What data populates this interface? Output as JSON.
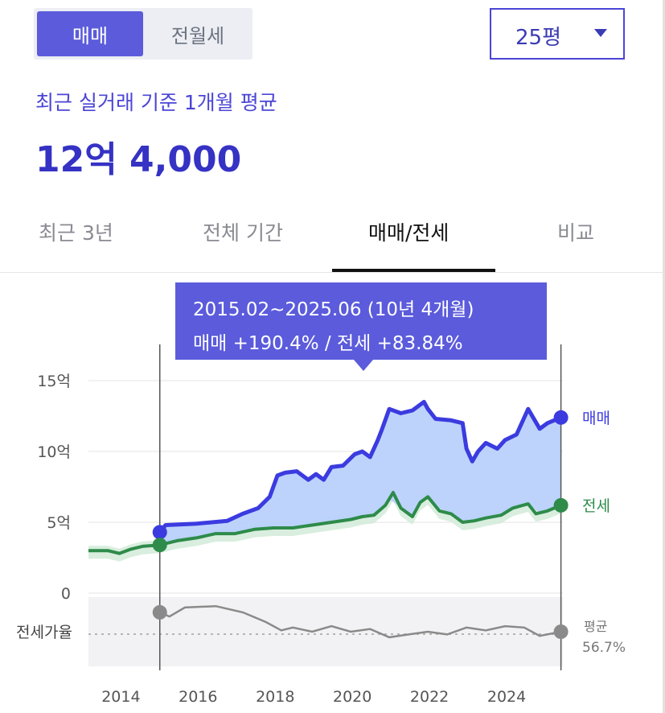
{
  "toggle": {
    "active": "매매",
    "inactive": "전월세"
  },
  "size_select": {
    "value": "25평"
  },
  "summary": {
    "subtitle": "최근 실거래 기준 1개월 평균",
    "price": "12억 4,000"
  },
  "tabs": [
    {
      "label": "최근 3년"
    },
    {
      "label": "전체 기간"
    },
    {
      "label": "매매/전세"
    },
    {
      "label": "비교"
    }
  ],
  "tooltip": {
    "line1": "2015.02~2025.06 (10년 4개월)",
    "line2": "매매 +190.4%  /  전세 +83.84%"
  },
  "colors": {
    "accent": "#5b5bdc",
    "sale": "#3b3be0",
    "sale_fill": "#b9d1fb",
    "jeonse": "#2e8b4a"
  },
  "chart_data": {
    "type": "line",
    "x_ticks": [
      "2014",
      "2016",
      "2018",
      "2020",
      "2022",
      "2024"
    ],
    "y_ticks": [
      "0",
      "5억",
      "10억",
      "15억"
    ],
    "ylim": [
      0,
      16
    ],
    "xlim": [
      2013.2,
      2025.5
    ],
    "highlight_range": [
      2015.05,
      2025.45
    ],
    "series": [
      {
        "name": "매매",
        "unit": "억",
        "points": [
          [
            2015.05,
            4.3
          ],
          [
            2015.2,
            4.8
          ],
          [
            2016,
            4.9
          ],
          [
            2016.8,
            5.1
          ],
          [
            2017.2,
            5.6
          ],
          [
            2017.6,
            6.0
          ],
          [
            2017.9,
            6.8
          ],
          [
            2018.1,
            8.3
          ],
          [
            2018.3,
            8.5
          ],
          [
            2018.6,
            8.6
          ],
          [
            2018.9,
            8.0
          ],
          [
            2019.1,
            8.4
          ],
          [
            2019.3,
            8.0
          ],
          [
            2019.5,
            8.9
          ],
          [
            2019.8,
            9.0
          ],
          [
            2020.1,
            9.8
          ],
          [
            2020.3,
            10.0
          ],
          [
            2020.5,
            9.6
          ],
          [
            2020.7,
            10.8
          ],
          [
            2020.8,
            11.5
          ],
          [
            2021,
            13.0
          ],
          [
            2021.3,
            12.7
          ],
          [
            2021.6,
            12.9
          ],
          [
            2021.9,
            13.5
          ],
          [
            2022,
            13.0
          ],
          [
            2022.2,
            12.3
          ],
          [
            2022.6,
            12.2
          ],
          [
            2022.9,
            12.0
          ],
          [
            2023,
            10.2
          ],
          [
            2023.15,
            9.3
          ],
          [
            2023.3,
            10.0
          ],
          [
            2023.5,
            10.6
          ],
          [
            2023.8,
            10.2
          ],
          [
            2024,
            10.8
          ],
          [
            2024.3,
            11.2
          ],
          [
            2024.6,
            13.0
          ],
          [
            2024.9,
            11.6
          ],
          [
            2025.1,
            12.0
          ],
          [
            2025.45,
            12.4
          ]
        ]
      },
      {
        "name": "전세",
        "unit": "억",
        "points": [
          [
            2013.2,
            3.0
          ],
          [
            2013.7,
            3.0
          ],
          [
            2014,
            2.8
          ],
          [
            2014.3,
            3.1
          ],
          [
            2014.6,
            3.3
          ],
          [
            2015.05,
            3.4
          ],
          [
            2015.5,
            3.7
          ],
          [
            2016,
            3.9
          ],
          [
            2016.5,
            4.2
          ],
          [
            2017,
            4.2
          ],
          [
            2017.5,
            4.5
          ],
          [
            2018,
            4.6
          ],
          [
            2018.5,
            4.6
          ],
          [
            2019,
            4.8
          ],
          [
            2019.5,
            5.0
          ],
          [
            2020,
            5.2
          ],
          [
            2020.3,
            5.4
          ],
          [
            2020.6,
            5.5
          ],
          [
            2020.9,
            6.2
          ],
          [
            2021.1,
            7.1
          ],
          [
            2021.3,
            6.0
          ],
          [
            2021.6,
            5.4
          ],
          [
            2021.8,
            6.4
          ],
          [
            2022,
            6.8
          ],
          [
            2022.3,
            5.8
          ],
          [
            2022.6,
            5.6
          ],
          [
            2022.9,
            5.0
          ],
          [
            2023.2,
            5.1
          ],
          [
            2023.5,
            5.3
          ],
          [
            2023.9,
            5.5
          ],
          [
            2024.2,
            6.0
          ],
          [
            2024.6,
            6.3
          ],
          [
            2024.8,
            5.6
          ],
          [
            2025.1,
            5.8
          ],
          [
            2025.45,
            6.2
          ]
        ]
      }
    ],
    "ratio": {
      "label": "전세가율",
      "avg_label": "평균",
      "avg_value": "56.7%",
      "points": [
        [
          2015.05,
          0.78
        ],
        [
          2015.3,
          0.72
        ],
        [
          2015.7,
          0.85
        ],
        [
          2016.5,
          0.87
        ],
        [
          2017.2,
          0.78
        ],
        [
          2017.8,
          0.64
        ],
        [
          2018.2,
          0.52
        ],
        [
          2018.5,
          0.56
        ],
        [
          2019,
          0.5
        ],
        [
          2019.5,
          0.58
        ],
        [
          2020,
          0.5
        ],
        [
          2020.5,
          0.54
        ],
        [
          2021,
          0.42
        ],
        [
          2021.5,
          0.46
        ],
        [
          2022,
          0.5
        ],
        [
          2022.5,
          0.46
        ],
        [
          2023,
          0.56
        ],
        [
          2023.5,
          0.52
        ],
        [
          2024,
          0.58
        ],
        [
          2024.5,
          0.56
        ],
        [
          2024.9,
          0.44
        ],
        [
          2025.45,
          0.5
        ]
      ]
    }
  }
}
